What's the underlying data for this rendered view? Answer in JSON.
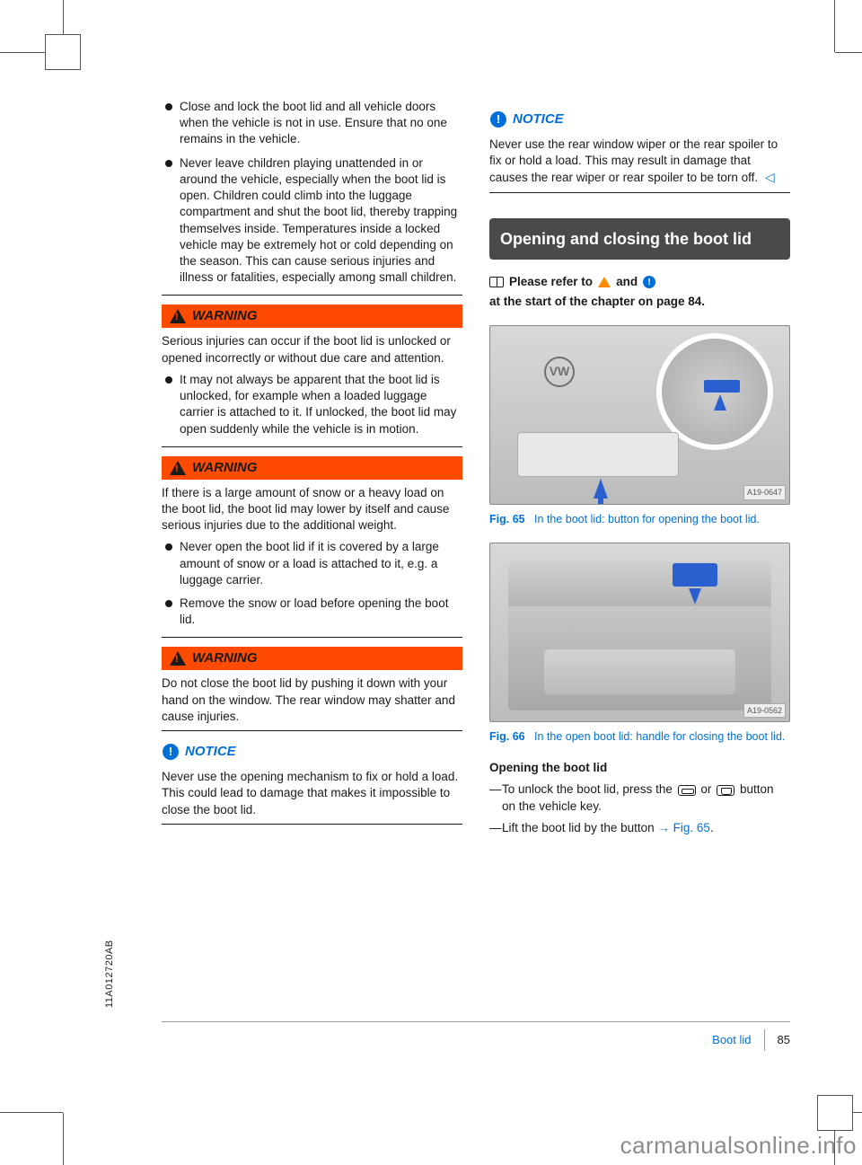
{
  "document_code": "11A012720AB",
  "page": {
    "section_label": "Boot lid",
    "number": "85"
  },
  "watermark": "carmanualsonline.info",
  "colors": {
    "warning_bg": "#ff4b00",
    "notice_fg": "#0070d8",
    "link": "#0070d8",
    "text": "#1a1a1a",
    "figure_accent": "#2a5fd0"
  },
  "left_column": {
    "intro_bullets": [
      "Close and lock the boot lid and all vehicle doors when the vehicle is not in use. Ensure that no one remains in the vehicle.",
      "Never leave children playing unattended in or around the vehicle, especially when the boot lid is open. Children could climb into the luggage compartment and shut the boot lid, thereby trapping themselves inside. Temperatures inside a locked vehicle may be extremely hot or cold depending on the season. This can cause serious injuries and illness or fatalities, especially among small children."
    ],
    "warning1": {
      "label": "WARNING",
      "text": "Serious injuries can occur if the boot lid is unlocked or opened incorrectly or without due care and attention.",
      "bullets": [
        "It may not always be apparent that the boot lid is unlocked, for example when a loaded luggage carrier is attached to it. If unlocked, the boot lid may open suddenly while the vehicle is in motion."
      ]
    },
    "warning2": {
      "label": "WARNING",
      "text": "If there is a large amount of snow or a heavy load on the boot lid, the boot lid may lower by itself and cause serious injuries due to the additional weight.",
      "bullets": [
        "Never open the boot lid if it is covered by a large amount of snow or a load is attached to it, e.g. a luggage carrier.",
        "Remove the snow or load before opening the boot lid."
      ]
    },
    "warning3": {
      "label": "WARNING",
      "text": "Do not close the boot lid by pushing it down with your hand on the window. The rear window may shatter and cause injuries."
    },
    "notice1": {
      "label": "NOTICE",
      "text": "Never use the opening mechanism to fix or hold a load. This could lead to damage that makes it impossible to close the boot lid."
    }
  },
  "right_column": {
    "notice2": {
      "label": "NOTICE",
      "text": "Never use the rear window wiper or the rear spoiler to fix or hold a load. This may result in damage that causes the rear wiper or rear spoiler to be torn off."
    },
    "section_header": "Opening and closing the boot lid",
    "refer": {
      "prefix": "Please refer to",
      "and": "and",
      "suffix": "at the start of the chapter on page 84."
    },
    "fig65": {
      "badge": "A19-0647",
      "label": "Fig. 65",
      "caption": "In the boot lid: button for opening the boot lid."
    },
    "fig66": {
      "badge": "A19-0562",
      "label": "Fig. 66",
      "caption": "In the open boot lid: handle for closing the boot lid."
    },
    "opening_head": "Opening the boot lid",
    "steps": {
      "s1a": "To unlock the boot lid, press the",
      "s1b": "or",
      "s1c": "button on the vehicle key.",
      "s2a": "Lift the boot lid by the button",
      "s2b": "Fig. 65",
      "s2c": "."
    }
  }
}
